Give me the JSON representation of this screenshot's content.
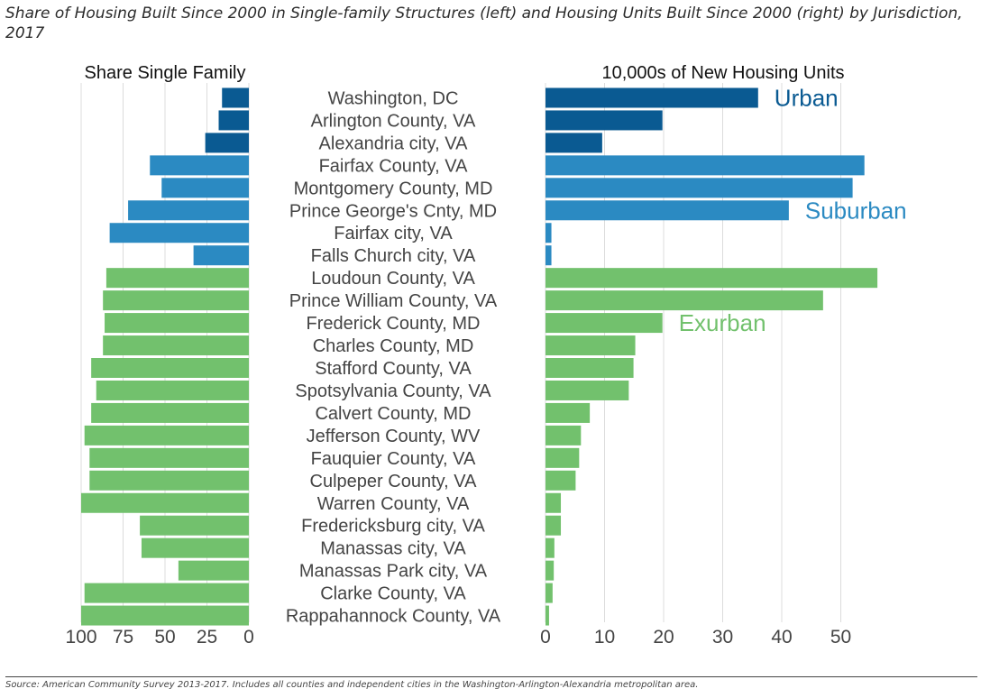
{
  "title": "Share of Housing Built Since 2000 in Single-family Structures (left) and Housing Units Built Since 2000 (right) by Jurisdiction, 2017",
  "source": "Source: American Community Survey 2013-2017. Includes all counties and independent cities in the Washington-Arlington-Alexandria metropolitan area.",
  "colors": {
    "Urban": "#0a5a92",
    "Suburban": "#2b8ac2",
    "Exurban": "#72c16d"
  },
  "chart_data": {
    "type": "bar",
    "orientation": "horizontal",
    "categories": [
      "Washington, DC",
      "Arlington County, VA",
      "Alexandria city, VA",
      "Fairfax County, VA",
      "Montgomery County, MD",
      "Prince George's Cnty, MD",
      "Fairfax city, VA",
      "Falls Church city, VA",
      "Loudoun County, VA",
      "Prince William County, VA",
      "Frederick County, MD",
      "Charles County, MD",
      "Stafford County, VA",
      "Spotsylvania County, VA",
      "Calvert County, MD",
      "Jefferson County, WV",
      "Fauquier County, VA",
      "Culpeper County, VA",
      "Warren County, VA",
      "Fredericksburg city, VA",
      "Manassas city, VA",
      "Manassas Park city, VA",
      "Clarke County, VA",
      "Rappahannock County, VA"
    ],
    "groups": [
      "Urban",
      "Urban",
      "Urban",
      "Suburban",
      "Suburban",
      "Suburban",
      "Suburban",
      "Suburban",
      "Exurban",
      "Exurban",
      "Exurban",
      "Exurban",
      "Exurban",
      "Exurban",
      "Exurban",
      "Exurban",
      "Exurban",
      "Exurban",
      "Exurban",
      "Exurban",
      "Exurban",
      "Exurban",
      "Exurban",
      "Exurban"
    ],
    "group_labels": [
      {
        "text": "Urban",
        "row": 0
      },
      {
        "text": "Suburban",
        "row": 5
      },
      {
        "text": "Exurban",
        "row": 10
      }
    ],
    "panels": [
      {
        "title": "Share Single Family",
        "direction": "reversed",
        "xlim": [
          0,
          100
        ],
        "ticks": [
          100,
          75,
          50,
          25,
          0
        ],
        "values": [
          16,
          18,
          26,
          59,
          52,
          72,
          83,
          33,
          85,
          87,
          86,
          87,
          94,
          91,
          94,
          98,
          95,
          95,
          100,
          65,
          64,
          42,
          98,
          100
        ]
      },
      {
        "title": "10,000s of New Housing Units",
        "direction": "normal",
        "xlim": [
          0,
          57
        ],
        "ticks": [
          0,
          10,
          20,
          30,
          40,
          50
        ],
        "values": [
          36,
          19.8,
          9.6,
          54,
          52,
          41.2,
          1,
          1,
          56.2,
          47,
          19.8,
          15.2,
          14.9,
          14.1,
          7.5,
          6,
          5.7,
          5.1,
          2.6,
          2.6,
          1.5,
          1.4,
          1.2,
          0.6
        ]
      }
    ],
    "grid": true,
    "legend": "none"
  }
}
